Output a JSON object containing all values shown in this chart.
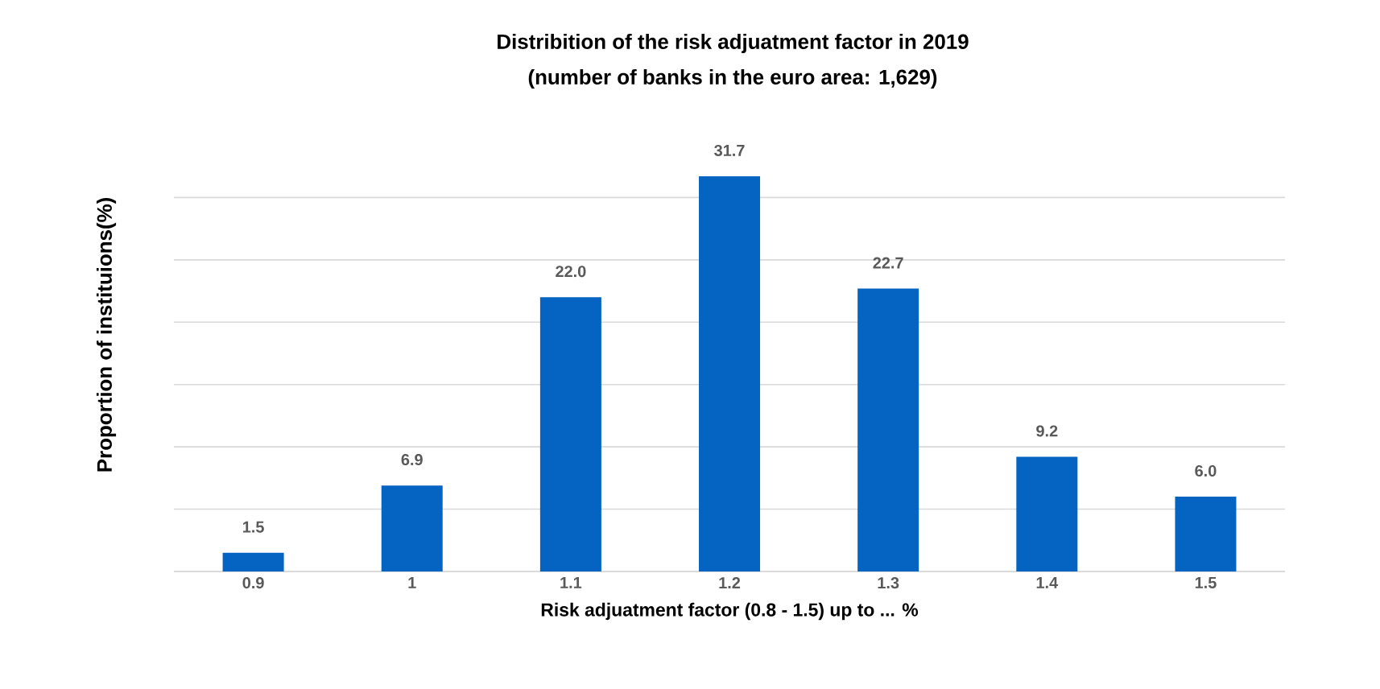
{
  "chart_data": {
    "type": "bar",
    "title": "Distribition of the risk adjuatment factor in 2019",
    "subtitle": "(number of banks in the euro area: 1,629)",
    "xlabel": "Risk adjuatment  factor (0.8 - 1.5) up to ... %",
    "ylabel": "Proportion of instituions(%)",
    "categories": [
      "0.9",
      "1",
      "1.1",
      "1.2",
      "1.3",
      "1.4",
      "1.5"
    ],
    "values": [
      1.5,
      6.9,
      22.0,
      31.7,
      22.7,
      9.2,
      6.0
    ],
    "color": "#0563c1",
    "value_labels": [
      "1.5",
      "6.9",
      "22.0",
      "31.7",
      "22.7",
      "9.2",
      "6.0"
    ],
    "grid": "y",
    "tick_labels": "x"
  }
}
